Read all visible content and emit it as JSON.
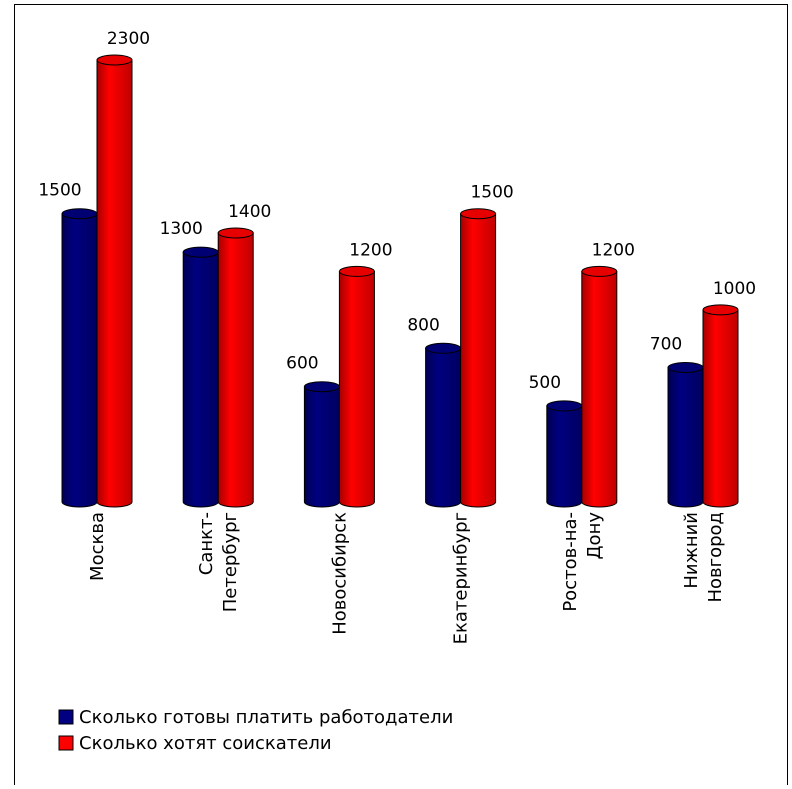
{
  "chart_data": {
    "type": "bar",
    "categories": [
      [
        "Москва"
      ],
      [
        "Санкт-",
        "Петербург"
      ],
      [
        "Новосибирск"
      ],
      [
        "Екатеринбург"
      ],
      [
        "Ростов-на-",
        "Дону"
      ],
      [
        "Нижний",
        "Новгород"
      ]
    ],
    "series": [
      {
        "name": "Сколько готовы платить работодатели",
        "color": "#000080",
        "values": [
          1500,
          1300,
          600,
          800,
          500,
          700
        ]
      },
      {
        "name": "Сколько хотят соискатели",
        "color": "#ff0000",
        "values": [
          2300,
          1400,
          1200,
          1500,
          1200,
          1000
        ]
      }
    ],
    "ylim": [
      0,
      2300
    ],
    "grid": false,
    "legend_position": "bottom-left",
    "title": "",
    "xlabel": "",
    "ylabel": ""
  }
}
